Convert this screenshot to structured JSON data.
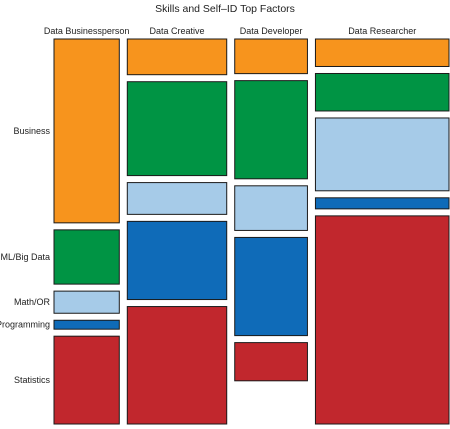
{
  "chart_data": {
    "type": "mosaic",
    "title": "Skills and Self–ID Top Factors",
    "columns": [
      "Data Businessperson",
      "Data Creative",
      "Data Developer",
      "Data Researcher"
    ],
    "column_widths": [
      0.176,
      0.268,
      0.196,
      0.36
    ],
    "rows": [
      "Business",
      "ML/Big Data",
      "Math/OR",
      "Programming",
      "Statistics"
    ],
    "row_labels_positioned_by_column": "Data Businessperson",
    "colors": {
      "Business": "#f7941d",
      "ML/Big Data": "#009444",
      "Math/OR": "#a6cbe8",
      "Programming": "#0f6bb8",
      "Statistics": "#c1272d"
    },
    "shares": {
      "Data Businessperson": [
        0.515,
        0.152,
        0.062,
        0.025,
        0.246
      ],
      "Data Creative": [
        0.1,
        0.263,
        0.089,
        0.219,
        0.329
      ],
      "Data Developer": [
        0.097,
        0.275,
        0.125,
        0.275,
        0.107
      ],
      "Data Researcher": [
        0.077,
        0.105,
        0.204,
        0.031,
        0.583
      ]
    }
  }
}
